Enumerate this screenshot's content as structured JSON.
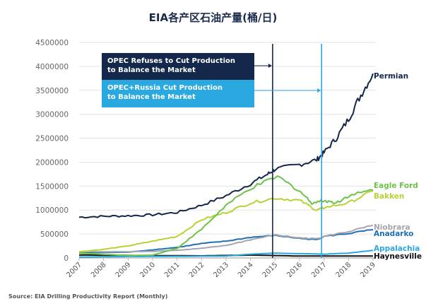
{
  "chart_data": {
    "type": "line",
    "title": "EIA各产区石油产量(桶/日)",
    "source": "Source: EIA Drilling Productivity Report (Monthly)",
    "ylim": [
      0,
      4500000
    ],
    "xlim": [
      2007,
      2019
    ],
    "yticks": [
      "0",
      "500000",
      "1000000",
      "1500000",
      "2000000",
      "2500000",
      "3000000",
      "3500000",
      "4000000",
      "4500000"
    ],
    "xticks": [
      "2007",
      "2008",
      "2009",
      "2010",
      "2011",
      "2012",
      "2013",
      "2014",
      "2015",
      "2016",
      "2017",
      "2018",
      "2019"
    ],
    "grid": "horizontal",
    "annotations": [
      {
        "text": "OPEC Refuses to Cut Production to Balance the Market",
        "line1": "OPEC Refuses to Cut Production",
        "line2": "to Balance the Market",
        "x": 2014.9,
        "color": "#13284a"
      },
      {
        "text": "OPEC+Russia Cut Production to Balance the Market",
        "line1": "OPEC+Russia Cut Production",
        "line2": "to Balance the Market",
        "x": 2016.9,
        "color": "#29a9e0"
      }
    ],
    "series": [
      {
        "name": "Permian",
        "color": "#13284a",
        "x": [
          2007,
          2008,
          2009,
          2010,
          2011,
          2012,
          2013,
          2014,
          2014.7,
          2015,
          2016,
          2016.7,
          2017,
          2017.5,
          2018,
          2018.5,
          2019
        ],
        "values": [
          850000,
          870000,
          880000,
          900000,
          950000,
          1100000,
          1300000,
          1550000,
          1750000,
          1850000,
          1950000,
          2050000,
          2200000,
          2500000,
          2900000,
          3400000,
          3850000
        ]
      },
      {
        "name": "Eagle Ford",
        "color": "#6cc24a",
        "x": [
          2007,
          2009,
          2010,
          2011,
          2012,
          2013,
          2014,
          2015.1,
          2016,
          2016.5,
          2017,
          2017.5,
          2018,
          2019
        ],
        "values": [
          100000,
          50000,
          60000,
          200000,
          600000,
          1100000,
          1450000,
          1700000,
          1400000,
          1150000,
          1200000,
          1150000,
          1300000,
          1420000
        ]
      },
      {
        "name": "Bakken",
        "color": "#b5d334",
        "x": [
          2007,
          2008,
          2009,
          2010,
          2011,
          2012,
          2013,
          2014,
          2015,
          2016,
          2016.7,
          2017,
          2018,
          2019
        ],
        "values": [
          130000,
          180000,
          250000,
          350000,
          450000,
          800000,
          950000,
          1150000,
          1250000,
          1200000,
          1000000,
          1050000,
          1150000,
          1400000
        ]
      },
      {
        "name": "Niobrara",
        "color": "#a4a6ae",
        "x": [
          2007,
          2009,
          2010,
          2011,
          2012,
          2013,
          2014,
          2015,
          2016,
          2016.7,
          2017,
          2018,
          2019
        ],
        "values": [
          130000,
          130000,
          140000,
          160000,
          200000,
          260000,
          380000,
          480000,
          420000,
          400000,
          450000,
          550000,
          680000
        ]
      },
      {
        "name": "Anadarko",
        "color": "#1f6fb5",
        "x": [
          2007,
          2009,
          2010,
          2011,
          2012,
          2013,
          2014,
          2015,
          2016,
          2016.7,
          2017,
          2018,
          2019
        ],
        "values": [
          110000,
          120000,
          170000,
          220000,
          300000,
          350000,
          430000,
          470000,
          410000,
          380000,
          450000,
          510000,
          590000
        ]
      },
      {
        "name": "Appalachia",
        "color": "#29a9e0",
        "x": [
          2007,
          2009,
          2013,
          2014,
          2015,
          2016,
          2017,
          2018,
          2019
        ],
        "values": [
          20000,
          30000,
          40000,
          80000,
          100000,
          90000,
          80000,
          100000,
          160000
        ]
      },
      {
        "name": "Haynesville",
        "color": "#111111",
        "x": [
          2007,
          2010,
          2012,
          2014,
          2016,
          2019
        ],
        "values": [
          60000,
          50000,
          45000,
          60000,
          40000,
          40000
        ]
      }
    ]
  }
}
